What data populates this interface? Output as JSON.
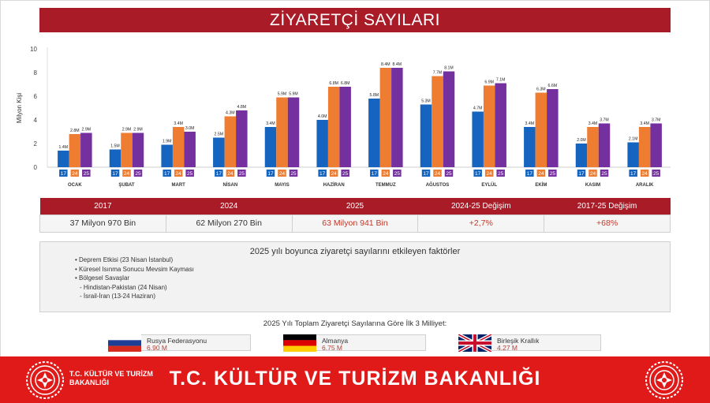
{
  "title": "ZİYARETÇİ SAYILARI",
  "chart_data": {
    "type": "bar",
    "ylabel": "Milyon Kişi",
    "ylim": [
      0,
      10
    ],
    "yticks": [
      "0",
      "2",
      "4",
      "6",
      "8",
      "10"
    ],
    "categories": [
      "OCAK",
      "ŞUBAT",
      "MART",
      "NİSAN",
      "MAYIS",
      "HAZİRAN",
      "TEMMUZ",
      "AĞUSTOS",
      "EYLÜL",
      "EKİM",
      "KASIM",
      "ARALIK"
    ],
    "series": [
      {
        "name": "17",
        "color": "#1565c0",
        "values": [
          1.4,
          1.5,
          1.9,
          2.5,
          3.4,
          4.0,
          5.8,
          5.3,
          4.7,
          3.4,
          2.0,
          2.1
        ],
        "labels": [
          "1.4M",
          "1.5M",
          "1.9M",
          "2.5M",
          "3.4M",
          "4.0M",
          "5.8M",
          "5.3M",
          "4.7M",
          "3.4M",
          "2.0M",
          "2.1M"
        ]
      },
      {
        "name": "24",
        "color": "#ef7d31",
        "values": [
          2.8,
          2.9,
          3.4,
          4.3,
          5.9,
          6.8,
          8.4,
          7.7,
          6.9,
          6.3,
          3.4,
          3.4
        ],
        "labels": [
          "2.8M",
          "2.9M",
          "3.4M",
          "4.3M",
          "5.9M",
          "6.8M",
          "8.4M",
          "7.7M",
          "6.9M",
          "6.3M",
          "3.4M",
          "3.4M"
        ]
      },
      {
        "name": "25",
        "color": "#7530a0",
        "values": [
          2.9,
          2.9,
          3.0,
          4.8,
          5.9,
          6.8,
          8.4,
          8.1,
          7.1,
          6.6,
          3.7,
          3.7
        ],
        "labels": [
          "2.9M",
          "2.9M",
          "3.0M",
          "4.8M",
          "5.9M",
          "6.8M",
          "8.4M",
          "8.1M",
          "7.1M",
          "6.6M",
          "3.7M",
          "3.7M"
        ]
      }
    ]
  },
  "stats": {
    "headers": [
      "2017",
      "2024",
      "2025",
      "2024-25 Değişim",
      "2017-25 Değişim"
    ],
    "values": [
      "37 Milyon 970 Bin",
      "62 Milyon 270 Bin",
      "63 Milyon 941 Bin",
      "+2,7%",
      "+68%"
    ]
  },
  "factors": {
    "title": "2025 yılı boyunca ziyaretçi sayılarını etkileyen faktörler",
    "items": [
      "• Deprem Etkisi (23 Nisan İstanbul)",
      "• Küresel Isınma Sonucu Mevsim Kayması",
      "• Bölgesel Savaşlar"
    ],
    "subitems": [
      "- Hindistan-Pakistan (24 Nisan)",
      "- İsrail-İran (13-24 Haziran)"
    ]
  },
  "top3": {
    "title": "2025 Yılı Toplam Ziyaretçi Sayılarına Göre İlk 3 Milliyet:",
    "countries": [
      {
        "name": "Rusya Federasyonu",
        "value": "6.90 M",
        "flag": "russia-flag"
      },
      {
        "name": "Almanya",
        "value": "6.75 M",
        "flag": "germany-flag"
      },
      {
        "name": "Birleşik Krallık",
        "value": "4.27 M",
        "flag": "uk-flag"
      }
    ]
  },
  "footer": {
    "small_line1": "T.C. KÜLTÜR VE TURİZM",
    "small_line2": "BAKANLIĞI",
    "big": "T.C. KÜLTÜR VE TURİZM BAKANLIĞI"
  },
  "colors": {
    "brand_red": "#a91c27",
    "footer_red": "#e01919",
    "highlight_red": "#c0392b"
  }
}
